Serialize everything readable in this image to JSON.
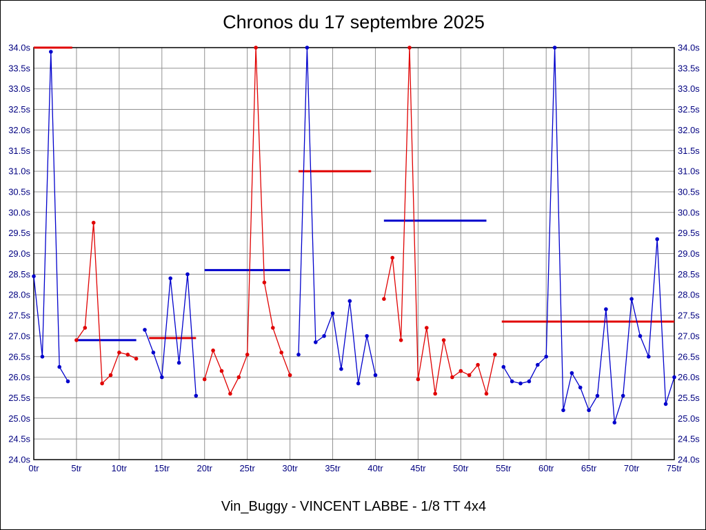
{
  "page": {
    "title": "Chronos du 17 septembre 2025",
    "subtitle": "Vin_Buggy - VINCENT LABBE - 1/8 TT 4x4"
  },
  "chart_data": {
    "type": "line",
    "title": "Chronos du 17 septembre 2025",
    "subtitle": "Vin_Buggy - VINCENT LABBE - 1/8 TT 4x4",
    "x_unit": "tr",
    "y_unit": "s",
    "xlim": [
      0,
      75
    ],
    "ylim": [
      24.0,
      34.0
    ],
    "x_tick_step": 5,
    "y_tick_step": 0.5,
    "grid": true,
    "legend": "none",
    "colors": {
      "series_blue": "#0000cc",
      "series_red": "#e00000",
      "grid": "#909090",
      "frame": "#000000",
      "tick_text": "#000080"
    },
    "segments": [
      {
        "name": "run-1",
        "color": "blue",
        "start_lap": 0,
        "lap_times_s": [
          28.45,
          26.5,
          33.9,
          26.25,
          25.9
        ]
      },
      {
        "name": "run-2",
        "color": "red",
        "start_lap": 5,
        "lap_times_s": [
          26.9,
          27.2,
          29.75,
          25.85,
          26.05,
          26.6,
          26.55,
          26.45
        ]
      },
      {
        "name": "run-3",
        "color": "blue",
        "start_lap": 13,
        "lap_times_s": [
          27.15,
          26.6,
          26.0,
          28.4,
          26.35,
          28.5,
          25.55
        ]
      },
      {
        "name": "run-4",
        "color": "red",
        "start_lap": 20,
        "lap_times_s": [
          25.95,
          26.65,
          26.15,
          25.6,
          26.0,
          26.55,
          34.0,
          28.3,
          27.2,
          26.6,
          26.05
        ]
      },
      {
        "name": "run-5",
        "color": "blue",
        "start_lap": 31,
        "lap_times_s": [
          26.55,
          34.0,
          26.85,
          27.0,
          27.55,
          26.2,
          27.85,
          25.85,
          27.0,
          26.05
        ]
      },
      {
        "name": "run-6",
        "color": "red",
        "start_lap": 41,
        "lap_times_s": [
          27.9,
          28.9,
          26.9,
          34.0,
          25.95,
          27.2,
          25.6,
          26.9,
          26.0,
          26.15,
          26.05,
          26.3,
          25.6,
          26.55
        ]
      },
      {
        "name": "run-7",
        "color": "blue",
        "start_lap": 55,
        "lap_times_s": [
          26.25,
          25.9,
          25.85,
          25.9,
          26.3,
          26.5,
          34.0,
          25.2,
          26.1,
          25.75,
          25.2,
          25.55,
          27.65,
          24.9,
          25.55,
          27.9,
          27.0,
          26.5,
          29.35,
          25.35,
          26.0
        ]
      }
    ],
    "average_lines": [
      {
        "color": "red",
        "value_s": 34.0,
        "from_lap": 0,
        "to_lap": 4.5
      },
      {
        "color": "blue",
        "value_s": 26.9,
        "from_lap": 5,
        "to_lap": 12
      },
      {
        "color": "red",
        "value_s": 26.95,
        "from_lap": 13.5,
        "to_lap": 19
      },
      {
        "color": "blue",
        "value_s": 28.6,
        "from_lap": 20,
        "to_lap": 30
      },
      {
        "color": "red",
        "value_s": 31.0,
        "from_lap": 31,
        "to_lap": 39.5
      },
      {
        "color": "blue",
        "value_s": 29.8,
        "from_lap": 41,
        "to_lap": 53
      },
      {
        "color": "red",
        "value_s": 27.35,
        "from_lap": 54.8,
        "to_lap": 75
      }
    ]
  }
}
